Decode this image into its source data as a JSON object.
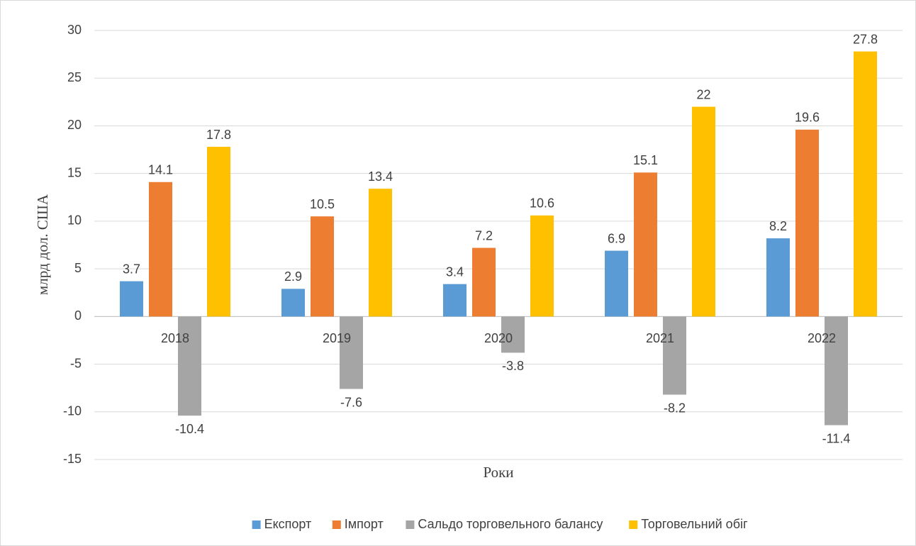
{
  "chart_data": {
    "type": "bar",
    "y_label": "млрд дол. США",
    "x_label": "Роки",
    "categories": [
      "2018",
      "2019",
      "2020",
      "2021",
      "2022"
    ],
    "series": [
      {
        "name": "Експорт",
        "color": "#5b9bd5",
        "values": [
          3.7,
          2.9,
          3.4,
          6.9,
          8.2
        ]
      },
      {
        "name": "Імпорт",
        "color": "#ed7d31",
        "values": [
          14.1,
          10.5,
          7.2,
          15.1,
          19.6
        ]
      },
      {
        "name": "Сальдо торговельного балансу",
        "color": "#a5a5a5",
        "values": [
          -10.4,
          -7.6,
          -3.8,
          -8.2,
          -11.4
        ]
      },
      {
        "name": "Торговельний обіг",
        "color": "#ffc000",
        "values": [
          17.8,
          13.4,
          10.6,
          22,
          27.8
        ]
      }
    ],
    "ylim": [
      -15,
      30
    ],
    "yticks": [
      -15,
      -10,
      -5,
      0,
      5,
      10,
      15,
      20,
      25,
      30
    ],
    "grid": true,
    "legend": "bottom"
  }
}
